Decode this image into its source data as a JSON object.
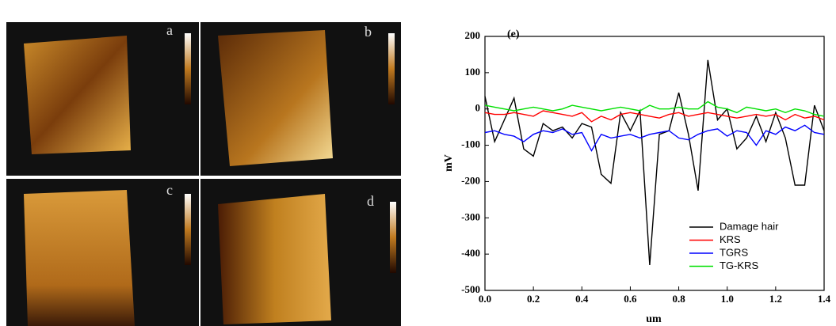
{
  "panels": {
    "labels": [
      "a",
      "b",
      "c",
      "d"
    ]
  },
  "chart_data": {
    "type": "line",
    "annotation": "(e)",
    "x_label": "um",
    "y_label": "mV",
    "x": [
      0,
      0.04,
      0.08,
      0.12,
      0.16,
      0.2,
      0.24,
      0.28,
      0.32,
      0.36,
      0.4,
      0.44,
      0.48,
      0.52,
      0.56,
      0.6,
      0.64,
      0.68,
      0.72,
      0.76,
      0.8,
      0.84,
      0.88,
      0.92,
      0.96,
      1,
      1.04,
      1.08,
      1.12,
      1.16,
      1.2,
      1.24,
      1.28,
      1.32,
      1.36,
      1.4
    ],
    "series": [
      {
        "name": "Damage hair",
        "color": "#000000",
        "values": [
          35,
          -90,
          -30,
          30,
          -110,
          -130,
          -40,
          -60,
          -50,
          -80,
          -40,
          -50,
          -180,
          -205,
          -10,
          -60,
          -5,
          -430,
          -70,
          -60,
          45,
          -70,
          -225,
          135,
          -30,
          0,
          -110,
          -80,
          -20,
          -90,
          -10,
          -80,
          -210,
          -210,
          10,
          -60
        ]
      },
      {
        "name": "KRS",
        "color": "#ff0000",
        "values": [
          -10,
          -15,
          -15,
          -10,
          -15,
          -20,
          -5,
          -10,
          -15,
          -20,
          -10,
          -35,
          -20,
          -30,
          -15,
          -10,
          -15,
          -20,
          -25,
          -15,
          -10,
          -20,
          -15,
          -10,
          -15,
          -20,
          -25,
          -20,
          -15,
          -20,
          -15,
          -30,
          -15,
          -25,
          -20,
          -30
        ]
      },
      {
        "name": "TGRS",
        "color": "#0000ff",
        "values": [
          -65,
          -60,
          -70,
          -75,
          -90,
          -70,
          -60,
          -65,
          -55,
          -70,
          -65,
          -115,
          -70,
          -80,
          -75,
          -70,
          -80,
          -70,
          -65,
          -60,
          -80,
          -85,
          -70,
          -60,
          -55,
          -75,
          -60,
          -65,
          -100,
          -60,
          -70,
          -50,
          -60,
          -45,
          -65,
          -70
        ]
      },
      {
        "name": "TG-KRS",
        "color": "#00e000",
        "values": [
          10,
          5,
          0,
          -5,
          0,
          5,
          0,
          -5,
          0,
          10,
          5,
          0,
          -5,
          0,
          5,
          0,
          -5,
          10,
          0,
          0,
          5,
          0,
          0,
          20,
          5,
          0,
          -10,
          5,
          0,
          -5,
          0,
          -10,
          0,
          -5,
          -15,
          -20
        ]
      }
    ],
    "xlim": [
      0,
      1.4
    ],
    "xticks": [
      {
        "value": 0,
        "label": "0.0"
      },
      {
        "value": 0.2,
        "label": "0.2"
      },
      {
        "value": 0.4,
        "label": "0.4"
      },
      {
        "value": 0.6,
        "label": "0.6"
      },
      {
        "value": 0.8,
        "label": "0.8"
      },
      {
        "value": 1,
        "label": "1.0"
      },
      {
        "value": 1.2,
        "label": "1.2"
      },
      {
        "value": 1.4,
        "label": "1.4"
      }
    ],
    "ylim": [
      -500,
      200
    ],
    "yticks": [
      -500,
      -400,
      -300,
      -200,
      -100,
      0,
      100,
      200
    ],
    "legend": "lower-right"
  }
}
